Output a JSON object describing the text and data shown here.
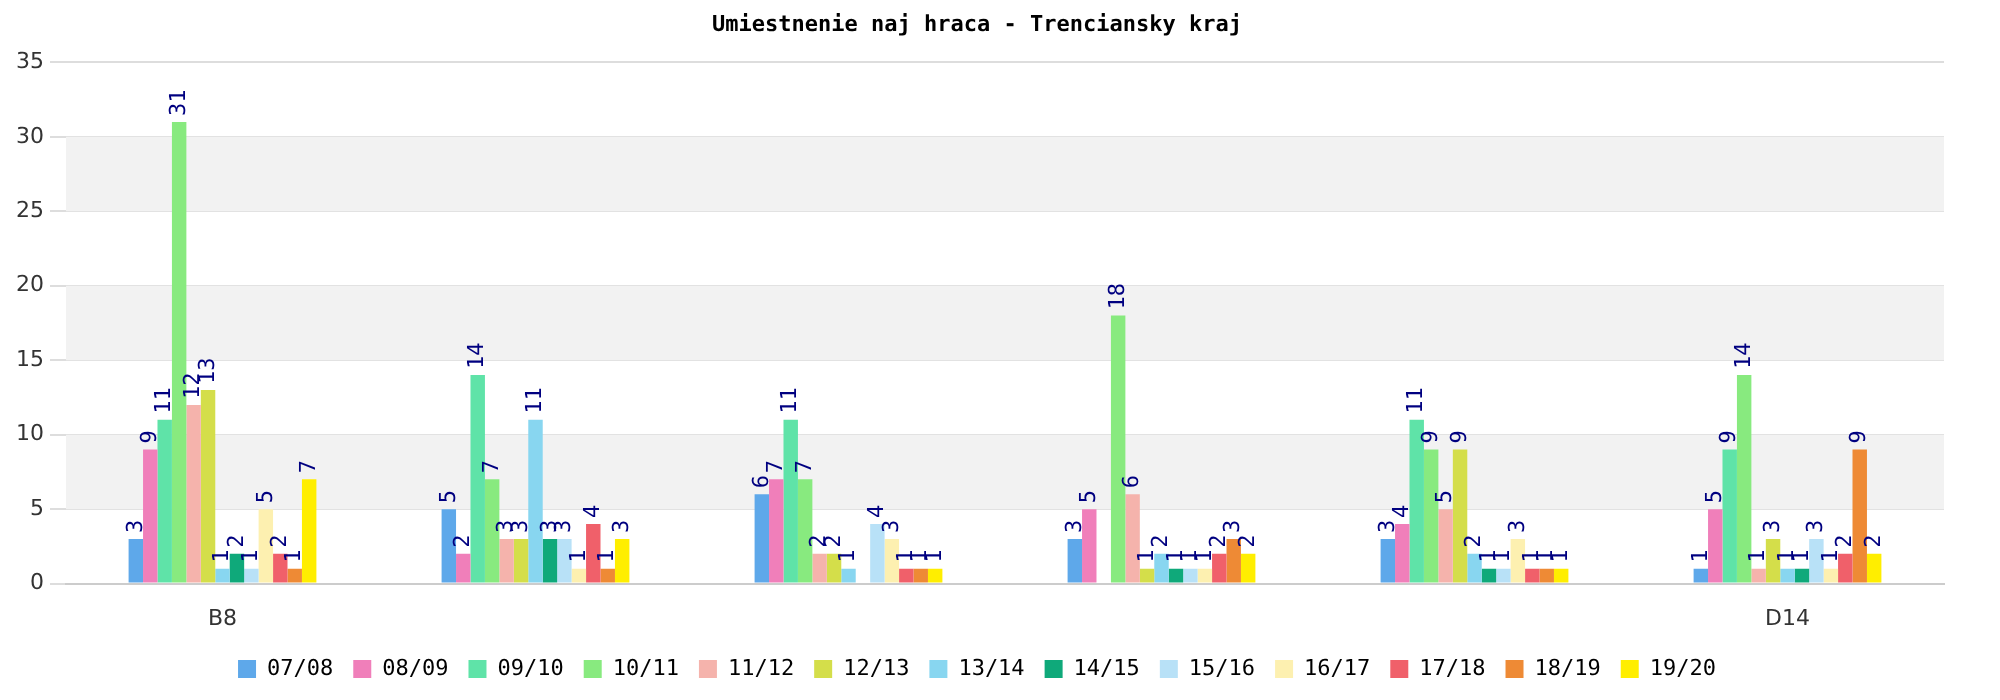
{
  "chart_data": {
    "type": "bar",
    "title": "Umiestnenie naj hraca - Trenciansky kraj",
    "categories": [
      "B8",
      null,
      null,
      null,
      null,
      "D14"
    ],
    "series": [
      {
        "name": "07/08",
        "color": "#5ea8ea",
        "values": [
          3,
          5,
          6,
          3,
          3,
          1
        ]
      },
      {
        "name": "08/09",
        "color": "#f07fba",
        "values": [
          9,
          2,
          7,
          5,
          4,
          5
        ]
      },
      {
        "name": "09/10",
        "color": "#5fe3a8",
        "values": [
          11,
          14,
          11,
          null,
          11,
          9
        ]
      },
      {
        "name": "10/11",
        "color": "#88ea7f",
        "values": [
          31,
          7,
          7,
          18,
          9,
          14
        ]
      },
      {
        "name": "11/12",
        "color": "#f5b3ac",
        "values": [
          12,
          3,
          2,
          6,
          5,
          1
        ]
      },
      {
        "name": "12/13",
        "color": "#d4de4a",
        "values": [
          13,
          3,
          2,
          1,
          9,
          3
        ]
      },
      {
        "name": "13/14",
        "color": "#88d6f0",
        "values": [
          1,
          11,
          1,
          2,
          2,
          1
        ]
      },
      {
        "name": "14/15",
        "color": "#0fa97a",
        "values": [
          2,
          3,
          null,
          1,
          1,
          1
        ]
      },
      {
        "name": "15/16",
        "color": "#b8e1f7",
        "values": [
          1,
          3,
          4,
          1,
          1,
          3
        ]
      },
      {
        "name": "16/17",
        "color": "#fdf0b0",
        "values": [
          5,
          1,
          3,
          1,
          3,
          1
        ]
      },
      {
        "name": "17/18",
        "color": "#f0606a",
        "values": [
          2,
          4,
          1,
          2,
          1,
          2
        ]
      },
      {
        "name": "18/19",
        "color": "#ee8a35",
        "values": [
          1,
          1,
          1,
          3,
          1,
          9
        ]
      },
      {
        "name": "19/20",
        "color": "#ffee00",
        "values": [
          7,
          3,
          1,
          2,
          1,
          2
        ]
      }
    ],
    "ylim": [
      0,
      35
    ],
    "yticks": [
      0,
      5,
      10,
      15,
      20,
      25,
      30,
      35
    ],
    "grid": "y",
    "legend": "bottom",
    "data_labels": true
  }
}
